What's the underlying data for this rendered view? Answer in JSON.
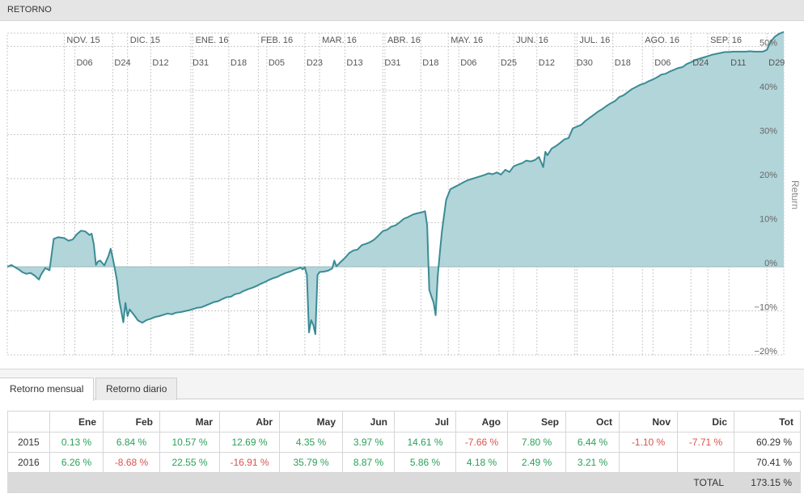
{
  "header": {
    "title": "RETORNO"
  },
  "colors": {
    "line": "#3a8c95",
    "fill": "#b2d5d9",
    "positive": "#2ca05a",
    "negative": "#d9534f",
    "grid": "#c8c8c8"
  },
  "chart_data": {
    "type": "area",
    "ylabel": "Return",
    "ylim": [
      -20,
      53
    ],
    "yticks": [
      -20,
      -10,
      0,
      10,
      20,
      30,
      40,
      50
    ],
    "ytick_suffix": "%",
    "grid": true,
    "months": [
      {
        "label": "NOV. 15",
        "date": "2015-11-01"
      },
      {
        "label": "DIC. 15",
        "date": "2015-12-01"
      },
      {
        "label": "ENE. 16",
        "date": "2016-01-01"
      },
      {
        "label": "FEB. 16",
        "date": "2016-02-01"
      },
      {
        "label": "MAR. 16",
        "date": "2016-03-01"
      },
      {
        "label": "ABR. 16",
        "date": "2016-04-01"
      },
      {
        "label": "MAY. 16",
        "date": "2016-05-01"
      },
      {
        "label": "JUN. 16",
        "date": "2016-06-01"
      },
      {
        "label": "JUL. 16",
        "date": "2016-07-01"
      },
      {
        "label": "AGO. 16",
        "date": "2016-08-01"
      },
      {
        "label": "SEP. 16",
        "date": "2016-09-01"
      }
    ],
    "days": [
      {
        "label": "D06",
        "date": "2015-11-06"
      },
      {
        "label": "D24",
        "date": "2015-11-24"
      },
      {
        "label": "D12",
        "date": "2015-12-12"
      },
      {
        "label": "D31",
        "date": "2015-12-31"
      },
      {
        "label": "D18",
        "date": "2016-01-18"
      },
      {
        "label": "D05",
        "date": "2016-02-05"
      },
      {
        "label": "D23",
        "date": "2016-02-23"
      },
      {
        "label": "D13",
        "date": "2016-03-13"
      },
      {
        "label": "D31",
        "date": "2016-03-31"
      },
      {
        "label": "D18",
        "date": "2016-04-18"
      },
      {
        "label": "D06",
        "date": "2016-05-06"
      },
      {
        "label": "D25",
        "date": "2016-05-25"
      },
      {
        "label": "D12",
        "date": "2016-06-12"
      },
      {
        "label": "D30",
        "date": "2016-06-30"
      },
      {
        "label": "D18",
        "date": "2016-07-18"
      },
      {
        "label": "D06",
        "date": "2016-08-06"
      },
      {
        "label": "D24",
        "date": "2016-08-24"
      },
      {
        "label": "D11",
        "date": "2016-09-11"
      },
      {
        "label": "D29",
        "date": "2016-09-29"
      }
    ],
    "series": [
      {
        "x": [
          "2015-10-05",
          "2015-10-07",
          "2015-10-09",
          "2015-10-11",
          "2015-10-12",
          "2015-10-14",
          "2015-10-16",
          "2015-10-18",
          "2015-10-20",
          "2015-10-21",
          "2015-10-23",
          "2015-10-25",
          "2015-10-27",
          "2015-10-29",
          "2015-11-01",
          "2015-11-03",
          "2015-11-05",
          "2015-11-07",
          "2015-11-09",
          "2015-11-11",
          "2015-11-12",
          "2015-11-13",
          "2015-11-14",
          "2015-11-15",
          "2015-11-16",
          "2015-11-17",
          "2015-11-18",
          "2015-11-20",
          "2015-11-22",
          "2015-11-23",
          "2015-11-24",
          "2015-11-25",
          "2015-11-26",
          "2015-11-27",
          "2015-11-29",
          "2015-11-30",
          "2015-12-01",
          "2015-12-02",
          "2015-12-04",
          "2015-12-06",
          "2015-12-08",
          "2015-12-10",
          "2015-12-12",
          "2015-12-14",
          "2015-12-16",
          "2015-12-18",
          "2015-12-20",
          "2015-12-22",
          "2015-12-24",
          "2015-12-26",
          "2015-12-28",
          "2015-12-30",
          "2016-01-01",
          "2016-01-03",
          "2016-01-05",
          "2016-01-07",
          "2016-01-09",
          "2016-01-11",
          "2016-01-13",
          "2016-01-15",
          "2016-01-17",
          "2016-01-19",
          "2016-01-21",
          "2016-01-23",
          "2016-01-25",
          "2016-01-27",
          "2016-01-29",
          "2016-01-31",
          "2016-02-02",
          "2016-02-04",
          "2016-02-06",
          "2016-02-08",
          "2016-02-10",
          "2016-02-12",
          "2016-02-14",
          "2016-02-16",
          "2016-02-18",
          "2016-02-20",
          "2016-02-21",
          "2016-02-22",
          "2016-02-23",
          "2016-02-24",
          "2016-02-25",
          "2016-02-26",
          "2016-02-27",
          "2016-02-28",
          "2016-02-29",
          "2016-03-01",
          "2016-03-03",
          "2016-03-05",
          "2016-03-07",
          "2016-03-08",
          "2016-03-09",
          "2016-03-11",
          "2016-03-13",
          "2016-03-15",
          "2016-03-17",
          "2016-03-19",
          "2016-03-21",
          "2016-03-23",
          "2016-03-25",
          "2016-03-27",
          "2016-03-29",
          "2016-03-31",
          "2016-04-02",
          "2016-04-04",
          "2016-04-06",
          "2016-04-08",
          "2016-04-10",
          "2016-04-12",
          "2016-04-14",
          "2016-04-16",
          "2016-04-18",
          "2016-04-20",
          "2016-04-21",
          "2016-04-22",
          "2016-04-23",
          "2016-04-24",
          "2016-04-25",
          "2016-04-26",
          "2016-04-27",
          "2016-04-28",
          "2016-04-30",
          "2016-05-02",
          "2016-05-04",
          "2016-05-06",
          "2016-05-08",
          "2016-05-10",
          "2016-05-12",
          "2016-05-14",
          "2016-05-16",
          "2016-05-18",
          "2016-05-20",
          "2016-05-22",
          "2016-05-24",
          "2016-05-26",
          "2016-05-28",
          "2016-05-30",
          "2016-06-01",
          "2016-06-03",
          "2016-06-05",
          "2016-06-07",
          "2016-06-09",
          "2016-06-11",
          "2016-06-13",
          "2016-06-15",
          "2016-06-16",
          "2016-06-17",
          "2016-06-19",
          "2016-06-21",
          "2016-06-23",
          "2016-06-25",
          "2016-06-27",
          "2016-06-29",
          "2016-07-01",
          "2016-07-03",
          "2016-07-05",
          "2016-07-07",
          "2016-07-09",
          "2016-07-11",
          "2016-07-13",
          "2016-07-15",
          "2016-07-17",
          "2016-07-19",
          "2016-07-21",
          "2016-07-23",
          "2016-07-25",
          "2016-07-27",
          "2016-07-29",
          "2016-07-31",
          "2016-08-02",
          "2016-08-04",
          "2016-08-06",
          "2016-08-08",
          "2016-08-10",
          "2016-08-12",
          "2016-08-14",
          "2016-08-16",
          "2016-08-18",
          "2016-08-20",
          "2016-08-22",
          "2016-08-24",
          "2016-08-26",
          "2016-08-28",
          "2016-08-30",
          "2016-09-01",
          "2016-09-03",
          "2016-09-05",
          "2016-09-07",
          "2016-09-09",
          "2016-09-11",
          "2016-09-13",
          "2016-09-15",
          "2016-09-17",
          "2016-09-19",
          "2016-09-21",
          "2016-09-23",
          "2016-09-25",
          "2016-09-27",
          "2016-09-29",
          "2016-10-01",
          "2016-10-03",
          "2016-10-05",
          "2016-10-07"
        ],
        "y": [
          0.0,
          0.4,
          -0.2,
          -0.8,
          -1.2,
          -1.6,
          -1.4,
          -2.0,
          -2.9,
          -1.8,
          -0.3,
          -0.8,
          6.3,
          6.7,
          6.5,
          5.9,
          6.2,
          7.4,
          8.2,
          8.0,
          7.6,
          7.2,
          7.5,
          5.1,
          0.4,
          1.2,
          1.4,
          0.3,
          2.5,
          4.1,
          2.0,
          -0.5,
          -3.2,
          -7.5,
          -12.6,
          -8.2,
          -11.2,
          -9.7,
          -10.9,
          -12.2,
          -12.7,
          -12.1,
          -11.8,
          -11.4,
          -11.2,
          -10.9,
          -10.6,
          -10.8,
          -10.4,
          -10.3,
          -10.1,
          -9.9,
          -9.6,
          -9.3,
          -9.2,
          -8.8,
          -8.4,
          -8.0,
          -7.8,
          -7.3,
          -6.9,
          -6.8,
          -6.2,
          -6.0,
          -5.5,
          -5.1,
          -4.8,
          -4.4,
          -3.9,
          -3.5,
          -3.0,
          -2.6,
          -2.3,
          -1.8,
          -1.4,
          -1.1,
          -0.7,
          -0.4,
          -0.2,
          -0.6,
          -0.1,
          -1.8,
          -14.9,
          -12.1,
          -13.2,
          -15.3,
          -1.9,
          -1.2,
          -1.1,
          -0.9,
          -0.4,
          1.4,
          0.1,
          1.1,
          2.0,
          3.1,
          3.7,
          3.9,
          4.9,
          5.2,
          5.6,
          6.2,
          7.1,
          8.1,
          8.4,
          9.1,
          9.4,
          10.1,
          10.9,
          11.3,
          11.8,
          12.1,
          12.3,
          12.6,
          9.4,
          -5.2,
          -6.7,
          -8.1,
          -11.0,
          -2.1,
          3.2,
          8.1,
          15.2,
          17.6,
          18.1,
          18.6,
          19.1,
          19.6,
          19.9,
          20.2,
          20.5,
          20.8,
          21.2,
          21.0,
          21.4,
          20.9,
          22.0,
          21.5,
          22.8,
          23.2,
          23.5,
          24.1,
          23.9,
          24.2,
          24.9,
          22.6,
          26.1,
          25.3,
          26.8,
          27.4,
          28.1,
          28.9,
          29.2,
          31.4,
          31.8,
          32.2,
          33.1,
          33.8,
          34.5,
          35.2,
          35.8,
          36.5,
          37.1,
          37.6,
          38.5,
          38.9,
          39.6,
          40.3,
          40.8,
          41.3,
          41.6,
          42.1,
          42.5,
          43.0,
          43.6,
          43.8,
          44.3,
          44.7,
          45.1,
          45.3,
          46.0,
          46.4,
          46.9,
          47.2,
          47.5,
          47.8,
          48.1,
          48.3,
          48.5,
          48.7,
          48.7,
          48.8,
          48.8,
          48.8,
          48.8,
          48.9,
          48.8,
          48.8,
          48.8,
          49.2,
          51.2,
          52.3,
          52.9,
          53.3
        ]
      }
    ]
  },
  "tabs": [
    {
      "label": "Retorno mensual"
    },
    {
      "label": "Retorno diario"
    }
  ],
  "table": {
    "headers": [
      "",
      "Ene",
      "Feb",
      "Mar",
      "Abr",
      "May",
      "Jun",
      "Jul",
      "Ago",
      "Sep",
      "Oct",
      "Nov",
      "Dic",
      "Tot"
    ],
    "rows": [
      {
        "year": "2015",
        "cells": [
          {
            "text": "0.13 %",
            "sign": "pos"
          },
          {
            "text": "6.84 %",
            "sign": "pos"
          },
          {
            "text": "10.57 %",
            "sign": "pos"
          },
          {
            "text": "12.69 %",
            "sign": "pos"
          },
          {
            "text": "4.35 %",
            "sign": "pos"
          },
          {
            "text": "3.97 %",
            "sign": "pos"
          },
          {
            "text": "14.61 %",
            "sign": "pos"
          },
          {
            "text": "-7.66 %",
            "sign": "neg"
          },
          {
            "text": "7.80 %",
            "sign": "pos"
          },
          {
            "text": "6.44 %",
            "sign": "pos"
          },
          {
            "text": "-1.10 %",
            "sign": "neg"
          },
          {
            "text": "-7.71 %",
            "sign": "neg"
          }
        ],
        "total": "60.29 %"
      },
      {
        "year": "2016",
        "cells": [
          {
            "text": "6.26 %",
            "sign": "pos"
          },
          {
            "text": "-8.68 %",
            "sign": "neg"
          },
          {
            "text": "22.55 %",
            "sign": "pos"
          },
          {
            "text": "-16.91 %",
            "sign": "neg"
          },
          {
            "text": "35.79 %",
            "sign": "pos"
          },
          {
            "text": "8.87 %",
            "sign": "pos"
          },
          {
            "text": "5.86 %",
            "sign": "pos"
          },
          {
            "text": "4.18 %",
            "sign": "pos"
          },
          {
            "text": "2.49 %",
            "sign": "pos"
          },
          {
            "text": "3.21 %",
            "sign": "pos"
          },
          {
            "text": "",
            "sign": ""
          },
          {
            "text": "",
            "sign": ""
          }
        ],
        "total": "70.41 %"
      }
    ],
    "total_label": "TOTAL",
    "total_value": "173.15 %"
  }
}
